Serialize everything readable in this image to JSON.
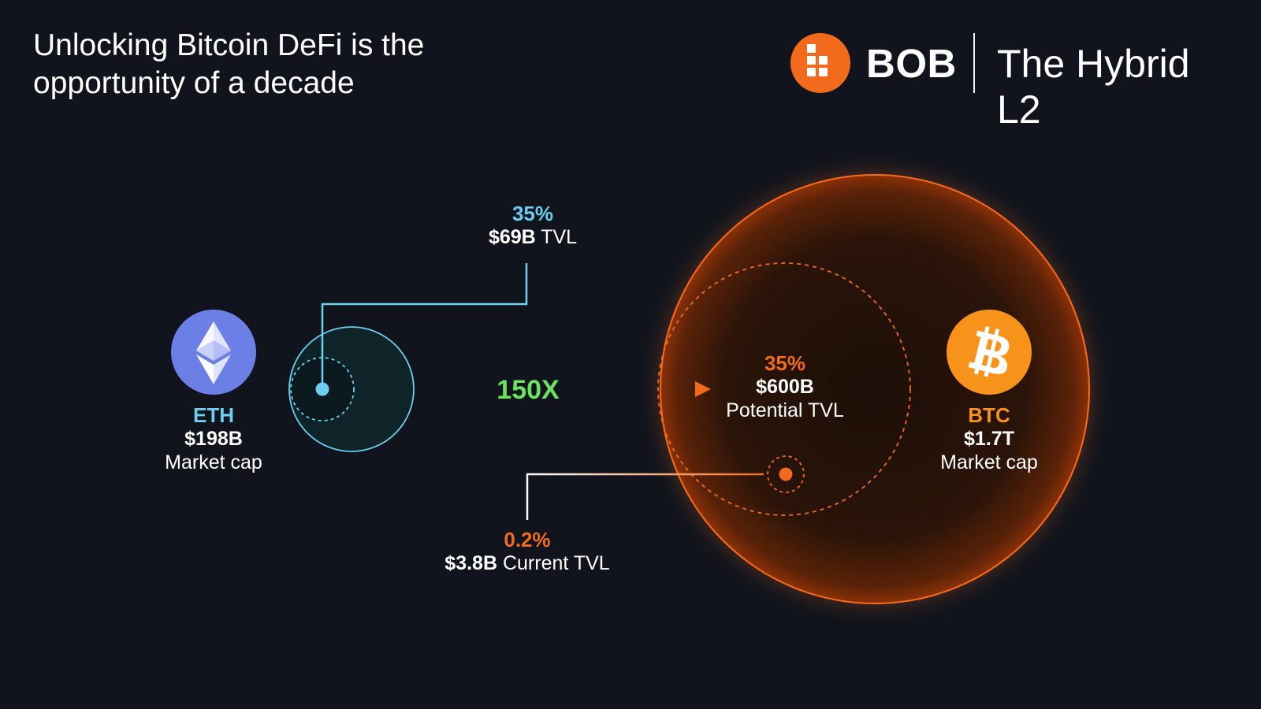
{
  "headline": {
    "line1": "Unlocking Bitcoin DeFi is the",
    "line2": "opportunity of a decade"
  },
  "brand": {
    "name": "BOB",
    "tagline": "The Hybrid L2",
    "logo_icon": "bob-block-logo-icon",
    "accent_color": "#f26a1b"
  },
  "eth": {
    "icon": "ethereum-icon",
    "ticker": "ETH",
    "value": "$198B",
    "caption": "Market cap",
    "color": "#6c7fe6"
  },
  "eth_tvl": {
    "percent": "35%",
    "value": "$69B",
    "caption": "TVL",
    "color": "#6ccfef"
  },
  "multiplier": {
    "label": "150X",
    "color": "#6be35f"
  },
  "btc_potential": {
    "percent": "35%",
    "value": "$600B",
    "caption": "Potential TVL"
  },
  "btc": {
    "icon": "bitcoin-icon",
    "ticker": "BTC",
    "value": "$1.7T",
    "caption": "Market cap",
    "color": "#f7931a"
  },
  "btc_current": {
    "percent": "0.2%",
    "value": "$3.8B",
    "caption": "Current TVL"
  }
}
